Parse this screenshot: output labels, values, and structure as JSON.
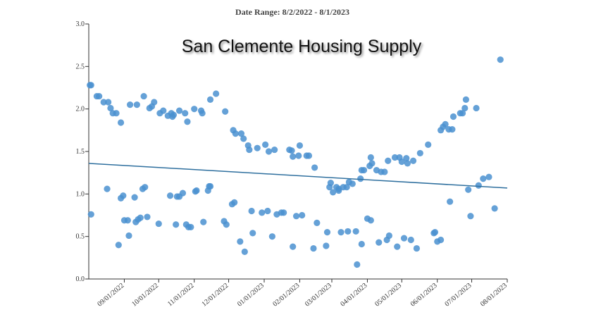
{
  "chart_data": {
    "type": "scatter",
    "subtitle": "Date Range: 8/2/2022 - 8/1/2023",
    "title": "San Clemente Housing Supply",
    "color": "#4a90d0",
    "trend_color": "#2e6f9e",
    "x": [
      "2022-08-02",
      "2022-08-03",
      "2022-08-03",
      "2022-08-08",
      "2022-08-10",
      "2022-08-14",
      "2022-08-17",
      "2022-08-18",
      "2022-08-20",
      "2022-08-22",
      "2022-08-25",
      "2022-08-27",
      "2022-08-29",
      "2022-08-29",
      "2022-08-31",
      "2022-09-01",
      "2022-09-04",
      "2022-09-05",
      "2022-09-06",
      "2022-09-10",
      "2022-09-11",
      "2022-09-12",
      "2022-09-13",
      "2022-09-15",
      "2022-09-17",
      "2022-09-18",
      "2022-09-19",
      "2022-09-21",
      "2022-09-23",
      "2022-09-25",
      "2022-09-27",
      "2022-10-01",
      "2022-10-02",
      "2022-10-05",
      "2022-10-09",
      "2022-10-11",
      "2022-10-12",
      "2022-10-13",
      "2022-10-14",
      "2022-10-16",
      "2022-10-17",
      "2022-10-19",
      "2022-10-19",
      "2022-10-22",
      "2022-10-24",
      "2022-10-25",
      "2022-10-26",
      "2022-10-27",
      "2022-10-29",
      "2022-11-01",
      "2022-11-02",
      "2022-11-03",
      "2022-11-07",
      "2022-11-08",
      "2022-11-09",
      "2022-11-13",
      "2022-11-14",
      "2022-11-15",
      "2022-11-15",
      "2022-11-20",
      "2022-11-27",
      "2022-11-28",
      "2022-11-29",
      "2022-12-04",
      "2022-12-06",
      "2022-12-05",
      "2022-12-07",
      "2022-12-11",
      "2022-12-12",
      "2022-12-14",
      "2022-12-15",
      "2022-12-18",
      "2022-12-19",
      "2022-12-21",
      "2022-12-22",
      "2022-12-26",
      "2022-12-30",
      "2023-01-02",
      "2023-01-04",
      "2023-01-05",
      "2023-01-08",
      "2023-01-10",
      "2023-01-12",
      "2023-01-16",
      "2023-01-18",
      "2023-01-23",
      "2023-01-25",
      "2023-01-26",
      "2023-01-26",
      "2023-01-29",
      "2023-01-31",
      "2023-02-01",
      "2023-02-03",
      "2023-02-07",
      "2023-02-09",
      "2023-02-13",
      "2023-02-14",
      "2023-02-16",
      "2023-02-24",
      "2023-02-25",
      "2023-02-27",
      "2023-02-28",
      "2023-03-02",
      "2023-03-05",
      "2023-03-07",
      "2023-03-07",
      "2023-03-09",
      "2023-03-11",
      "2023-03-14",
      "2023-03-15",
      "2023-03-16",
      "2023-03-19",
      "2023-03-22",
      "2023-03-23",
      "2023-03-26",
      "2023-03-27",
      "2023-03-27",
      "2023-03-29",
      "2023-04-01",
      "2023-04-03",
      "2023-04-04",
      "2023-04-04",
      "2023-04-05",
      "2023-04-09",
      "2023-04-11",
      "2023-04-13",
      "2023-04-16",
      "2023-04-18",
      "2023-04-19",
      "2023-04-20",
      "2023-04-25",
      "2023-04-27",
      "2023-04-29",
      "2023-05-01",
      "2023-05-03",
      "2023-05-05",
      "2023-05-06",
      "2023-05-09",
      "2023-05-11",
      "2023-05-14",
      "2023-05-17",
      "2023-05-24",
      "2023-05-29",
      "2023-05-30",
      "2023-06-01",
      "2023-06-04",
      "2023-06-04",
      "2023-06-06",
      "2023-06-08",
      "2023-06-11",
      "2023-06-12",
      "2023-06-14",
      "2023-06-15",
      "2023-06-21",
      "2023-06-23",
      "2023-06-25",
      "2023-06-26",
      "2023-06-28",
      "2023-06-30",
      "2023-07-05",
      "2023-07-07",
      "2023-07-11",
      "2023-07-16",
      "2023-07-21",
      "2023-07-26"
    ],
    "values": [
      2.28,
      2.28,
      0.76,
      2.15,
      2.15,
      2.08,
      1.06,
      2.08,
      2.01,
      1.95,
      1.95,
      0.4,
      0.95,
      1.84,
      0.98,
      0.69,
      0.69,
      0.51,
      2.05,
      0.96,
      0.67,
      2.05,
      0.7,
      0.72,
      1.06,
      2.15,
      1.08,
      0.73,
      2.01,
      2.03,
      2.08,
      0.65,
      1.95,
      1.98,
      1.92,
      0.98,
      1.95,
      1.91,
      1.93,
      0.64,
      0.97,
      1.98,
      0.97,
      1.01,
      1.95,
      0.64,
      1.85,
      0.61,
      0.61,
      2.0,
      1.03,
      1.04,
      1.98,
      1.95,
      0.67,
      1.04,
      1.09,
      1.09,
      2.11,
      2.18,
      0.68,
      1.97,
      0.64,
      0.88,
      0.9,
      1.75,
      1.71,
      0.44,
      1.71,
      1.65,
      0.32,
      1.57,
      1.52,
      0.8,
      0.54,
      1.54,
      0.78,
      1.58,
      0.8,
      1.5,
      0.5,
      1.52,
      0.76,
      0.78,
      0.78,
      1.52,
      1.51,
      0.38,
      1.44,
      0.74,
      1.45,
      1.57,
      0.75,
      1.45,
      1.45,
      0.36,
      1.31,
      0.66,
      0.39,
      0.55,
      1.08,
      1.13,
      1.02,
      1.08,
      1.06,
      1.04,
      0.55,
      1.08,
      1.08,
      0.56,
      1.14,
      1.12,
      0.56,
      0.17,
      1.18,
      0.41,
      1.28,
      1.28,
      0.71,
      1.33,
      0.69,
      1.43,
      1.36,
      1.28,
      0.43,
      1.26,
      1.26,
      0.46,
      1.39,
      0.51,
      1.43,
      0.38,
      1.43,
      1.38,
      0.48,
      1.42,
      1.36,
      0.46,
      1.39,
      0.36,
      1.48,
      1.58,
      0.54,
      0.55,
      0.44,
      1.75,
      0.46,
      1.79,
      1.82,
      1.76,
      0.91,
      1.76,
      1.91,
      1.95,
      1.95,
      2.01,
      2.11,
      1.05,
      0.74,
      2.01,
      1.1,
      1.18,
      1.2,
      0.83,
      2.58
    ],
    "trend_line": {
      "x": [
        "2022-08-01",
        "2023-08-01"
      ],
      "values": [
        1.36,
        1.07
      ]
    },
    "xlim": [
      "2022-08-01",
      "2023-08-01"
    ],
    "xticks": [
      {
        "value": "2022-09-01",
        "label": "09/01/2022"
      },
      {
        "value": "2022-10-01",
        "label": "10/01/2022"
      },
      {
        "value": "2022-11-01",
        "label": "11/01/2022"
      },
      {
        "value": "2022-12-01",
        "label": "12/01/2022"
      },
      {
        "value": "2023-01-01",
        "label": "01/01/2023"
      },
      {
        "value": "2023-02-01",
        "label": "02/01/2023"
      },
      {
        "value": "2023-03-01",
        "label": "03/01/2023"
      },
      {
        "value": "2023-04-01",
        "label": "04/01/2023"
      },
      {
        "value": "2023-05-01",
        "label": "05/01/2023"
      },
      {
        "value": "2023-06-01",
        "label": "06/01/2023"
      },
      {
        "value": "2023-07-01",
        "label": "07/01/2023"
      },
      {
        "value": "2023-08-01",
        "label": "08/01/2023"
      }
    ],
    "ylim": [
      0,
      3
    ],
    "yticks": [
      {
        "value": 0,
        "label": "0.0"
      },
      {
        "value": 0.5,
        "label": "0.5"
      },
      {
        "value": 1,
        "label": "1.0"
      },
      {
        "value": 1.5,
        "label": "1.5"
      },
      {
        "value": 2,
        "label": "2.0"
      },
      {
        "value": 2.5,
        "label": "2.5"
      },
      {
        "value": 3,
        "label": "3.0"
      }
    ]
  }
}
